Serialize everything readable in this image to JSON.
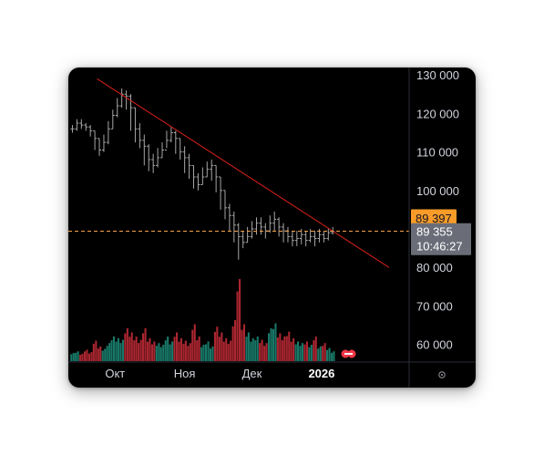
{
  "chart_data": {
    "type": "ohlc",
    "title": "",
    "xlabel": "",
    "ylabel": "",
    "ylim": [
      58000,
      131000
    ],
    "y_ticks": [
      60000,
      70000,
      80000,
      90000,
      100000,
      110000,
      120000,
      130000
    ],
    "y_tick_labels": [
      "60 000",
      "70 000",
      "80 000",
      "90 000",
      "100 000",
      "110 000",
      "120 000",
      "130 000"
    ],
    "x_ticks": [
      {
        "label": "Окт",
        "date": "2025-10-01",
        "bold": false
      },
      {
        "label": "Ноя",
        "date": "2025-11-01",
        "bold": false
      },
      {
        "label": "Дек",
        "date": "2025-12-01",
        "bold": false
      },
      {
        "label": "2026",
        "date": "2026-01-01",
        "bold": true
      }
    ],
    "x_range": [
      "2025-09-11",
      "2026-02-09"
    ],
    "series": [
      {
        "dates": [
          "2025-09-12",
          "2025-09-14",
          "2025-09-16",
          "2025-09-18",
          "2025-09-20",
          "2025-09-22",
          "2025-09-24",
          "2025-09-26",
          "2025-09-28",
          "2025-09-30",
          "2025-10-02",
          "2025-10-04",
          "2025-10-06",
          "2025-10-08",
          "2025-10-10",
          "2025-10-12",
          "2025-10-14",
          "2025-10-16",
          "2025-10-18",
          "2025-10-20",
          "2025-10-22",
          "2025-10-24",
          "2025-10-26",
          "2025-10-28",
          "2025-10-30",
          "2025-11-01",
          "2025-11-03",
          "2025-11-05",
          "2025-11-07",
          "2025-11-09",
          "2025-11-11",
          "2025-11-13",
          "2025-11-15",
          "2025-11-17",
          "2025-11-19",
          "2025-11-21",
          "2025-11-23",
          "2025-11-25",
          "2025-11-27",
          "2025-11-29",
          "2025-12-01",
          "2025-12-03",
          "2025-12-05",
          "2025-12-07",
          "2025-12-09",
          "2025-12-11",
          "2025-12-13",
          "2025-12-15",
          "2025-12-17",
          "2025-12-19",
          "2025-12-21",
          "2025-12-23",
          "2025-12-25",
          "2025-12-27",
          "2025-12-29",
          "2025-12-31",
          "2026-01-02",
          "2026-01-04",
          "2026-01-06"
        ],
        "close": [
          116000,
          117500,
          117000,
          116500,
          115500,
          113500,
          110500,
          112500,
          116000,
          119500,
          122000,
          125000,
          124500,
          121500,
          116000,
          113000,
          111500,
          108000,
          106500,
          108500,
          110500,
          113000,
          115000,
          113500,
          110000,
          108500,
          106500,
          103500,
          101500,
          103500,
          105500,
          106500,
          103500,
          100000,
          95500,
          93500,
          91000,
          88000,
          86500,
          88000,
          90000,
          91500,
          90500,
          89500,
          91500,
          92500,
          90500,
          89500,
          88000,
          87000,
          87500,
          88500,
          87000,
          88000,
          87500,
          88500,
          87500,
          89000,
          89355
        ],
        "high": [
          117000,
          118500,
          118500,
          117500,
          117000,
          115500,
          113500,
          114500,
          118000,
          121000,
          124000,
          126500,
          126000,
          125000,
          121500,
          117500,
          114500,
          112000,
          109500,
          111000,
          112500,
          115500,
          116500,
          115500,
          113500,
          111500,
          109500,
          106500,
          104500,
          106000,
          107500,
          108000,
          106500,
          103500,
          100000,
          96500,
          94500,
          91500,
          89500,
          90500,
          92000,
          93000,
          93000,
          91500,
          93500,
          94500,
          93000,
          91500,
          90500,
          89500,
          89500,
          90000,
          89500,
          90000,
          89500,
          90000,
          89500,
          90000,
          90500
        ],
        "low": [
          115000,
          115500,
          116000,
          115500,
          114000,
          110500,
          109000,
          110000,
          112000,
          116000,
          119000,
          121500,
          121000,
          115500,
          112500,
          111000,
          106500,
          105000,
          104500,
          106000,
          108500,
          111000,
          112500,
          109500,
          108000,
          104500,
          103000,
          100500,
          100000,
          101500,
          103500,
          102500,
          99500,
          95000,
          92500,
          89500,
          86500,
          82000,
          85000,
          86500,
          87500,
          88500,
          88500,
          87500,
          89000,
          89500,
          88000,
          86500,
          86500,
          85500,
          85500,
          86000,
          85500,
          86500,
          85500,
          86500,
          86500,
          87000,
          88500
        ],
        "volume": [
          0.1,
          0.12,
          0.09,
          0.14,
          0.11,
          0.25,
          0.18,
          0.15,
          0.22,
          0.3,
          0.28,
          0.26,
          0.4,
          0.35,
          0.3,
          0.26,
          0.4,
          0.28,
          0.24,
          0.22,
          0.2,
          0.3,
          0.24,
          0.35,
          0.28,
          0.25,
          0.22,
          0.45,
          0.3,
          0.2,
          0.24,
          0.18,
          0.42,
          0.35,
          0.28,
          0.25,
          0.5,
          1.0,
          0.45,
          0.35,
          0.28,
          0.3,
          0.26,
          0.22,
          0.4,
          0.46,
          0.34,
          0.3,
          0.36,
          0.28,
          0.24,
          0.22,
          0.24,
          0.2,
          0.3,
          0.18,
          0.22,
          0.16,
          0.12
        ]
      }
    ],
    "trendline": {
      "x0": "2025-09-23",
      "y0": 129000,
      "x1": "2026-01-31",
      "y1": 80000,
      "color": "#d7201a"
    },
    "horizontal_line": {
      "y": 89397,
      "color": "#f5a04a",
      "style": "dashed"
    },
    "price_labels": [
      {
        "text": "89 397",
        "y": 89397,
        "bg": "#f89b29",
        "fg": "#131722"
      },
      {
        "text": "89 355",
        "sub": "10:46:27",
        "y": 89355,
        "bg": "#6a6d78",
        "fg": "#ffffff"
      }
    ],
    "colors": {
      "up": "#22ab94",
      "down": "#f23645",
      "bar": "#a6a6a6",
      "text": "#d1d4dc",
      "background": "#000000"
    },
    "grid": false
  }
}
